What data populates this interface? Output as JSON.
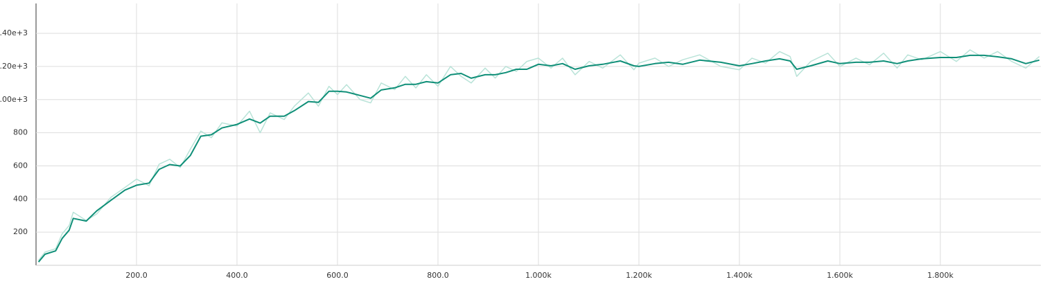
{
  "chart_data": {
    "type": "line",
    "x": [
      5,
      18,
      39,
      52,
      66,
      74,
      100,
      121,
      149,
      177,
      200,
      225,
      245,
      266,
      287,
      307,
      328,
      349,
      370,
      400,
      425,
      446,
      466,
      494,
      514,
      542,
      562,
      583,
      600,
      618,
      645,
      666,
      687,
      714,
      735,
      756,
      777,
      800,
      825,
      846,
      866,
      894,
      914,
      935,
      956,
      977,
      1000,
      1025,
      1048,
      1073,
      1101,
      1128,
      1163,
      1190,
      1200,
      1232,
      1259,
      1287,
      1321,
      1363,
      1400,
      1425,
      1452,
      1480,
      1501,
      1514,
      1542,
      1576,
      1600,
      1632,
      1659,
      1687,
      1714,
      1735,
      1763,
      1800,
      1832,
      1859,
      1887,
      1914,
      1942,
      1970,
      1997
    ],
    "series": [
      {
        "color": "#b9e3d8",
        "values": [
          30,
          80,
          100,
          190,
          240,
          320,
          270,
          310,
          410,
          470,
          520,
          480,
          610,
          640,
          590,
          700,
          810,
          770,
          860,
          840,
          930,
          800,
          920,
          880,
          960,
          1040,
          960,
          1080,
          1030,
          1090,
          1000,
          980,
          1100,
          1060,
          1140,
          1070,
          1150,
          1080,
          1200,
          1140,
          1100,
          1190,
          1130,
          1200,
          1170,
          1230,
          1250,
          1190,
          1250,
          1150,
          1230,
          1190,
          1270,
          1180,
          1220,
          1250,
          1200,
          1240,
          1270,
          1200,
          1180,
          1250,
          1220,
          1290,
          1260,
          1140,
          1230,
          1280,
          1200,
          1250,
          1210,
          1280,
          1190,
          1270,
          1240,
          1290,
          1230,
          1300,
          1250,
          1290,
          1230,
          1190,
          1260
        ]
      },
      {
        "color": "#0f8f78",
        "values": [
          20,
          67,
          87,
          162,
          212,
          283,
          267,
          329,
          392,
          454,
          483,
          496,
          579,
          608,
          600,
          662,
          779,
          788,
          829,
          850,
          883,
          858,
          900,
          900,
          933,
          988,
          983,
          1050,
          1050,
          1046,
          1025,
          1008,
          1058,
          1071,
          1092,
          1092,
          1108,
          1100,
          1150,
          1158,
          1129,
          1150,
          1150,
          1163,
          1183,
          1183,
          1213,
          1204,
          1217,
          1183,
          1204,
          1213,
          1233,
          1204,
          1200,
          1217,
          1225,
          1213,
          1238,
          1225,
          1204,
          1217,
          1233,
          1246,
          1233,
          1183,
          1204,
          1233,
          1217,
          1225,
          1225,
          1233,
          1217,
          1233,
          1246,
          1254,
          1254,
          1267,
          1267,
          1258,
          1246,
          1217,
          1238
        ]
      }
    ],
    "xlim": [
      0,
      2000
    ],
    "ylim": [
      0,
      1580
    ],
    "xticks": [
      {
        "value": 200,
        "label": "200.0"
      },
      {
        "value": 400,
        "label": "400.0"
      },
      {
        "value": 600,
        "label": "600.0"
      },
      {
        "value": 800,
        "label": "800.0"
      },
      {
        "value": 1000,
        "label": "1.000k"
      },
      {
        "value": 1200,
        "label": "1.200k"
      },
      {
        "value": 1400,
        "label": "1.400k"
      },
      {
        "value": 1600,
        "label": "1.600k"
      },
      {
        "value": 1800,
        "label": "1.800k"
      }
    ],
    "yticks": [
      200,
      400,
      600,
      800,
      {
        "value": 1000,
        "label": "1.00e+3"
      },
      {
        "value": 1200,
        "label": "1.20e+3"
      },
      {
        "value": 1400,
        "label": "1.40e+3"
      }
    ],
    "grid": true
  }
}
